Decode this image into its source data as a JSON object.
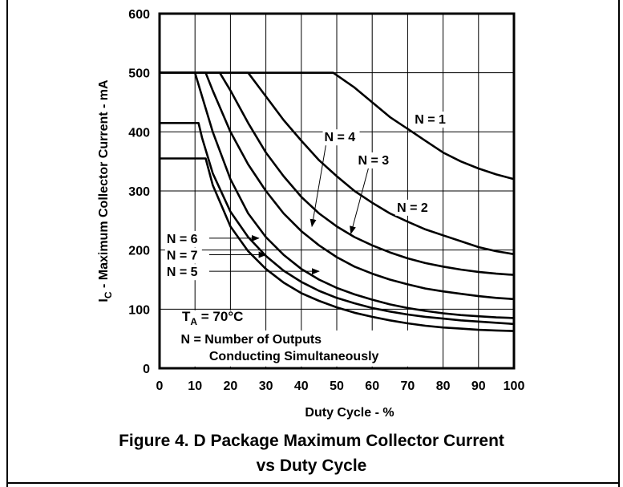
{
  "figure": {
    "caption_line1": "Figure 4. D Package Maximum Collector Current",
    "caption_line2": "vs Duty Cycle"
  },
  "chart_data": {
    "type": "line",
    "xlabel": "Duty Cycle -  %",
    "ylabel_main": "I",
    "ylabel_sub": "C",
    "ylabel_rest": " - Maximum Collector Current - mA",
    "xlim": [
      0,
      100
    ],
    "ylim": [
      0,
      600
    ],
    "x_ticks": [
      0,
      10,
      20,
      30,
      40,
      50,
      60,
      70,
      80,
      90,
      100
    ],
    "y_ticks": [
      0,
      100,
      200,
      300,
      400,
      500,
      600
    ],
    "grid": true,
    "series": [
      {
        "name": "N = 1",
        "x": [
          0,
          49,
          55,
          60,
          65,
          70,
          75,
          80,
          85,
          90,
          95,
          100
        ],
        "y": [
          500,
          500,
          475,
          450,
          425,
          405,
          385,
          365,
          350,
          338,
          328,
          320
        ]
      },
      {
        "name": "N = 2",
        "x": [
          0,
          25,
          30,
          35,
          40,
          45,
          50,
          55,
          60,
          65,
          70,
          75,
          80,
          85,
          90,
          95,
          100
        ],
        "y": [
          500,
          500,
          460,
          420,
          385,
          352,
          325,
          300,
          280,
          262,
          248,
          235,
          225,
          215,
          205,
          198,
          193
        ]
      },
      {
        "name": "N = 3",
        "x": [
          0,
          17,
          20,
          25,
          30,
          35,
          40,
          45,
          50,
          55,
          60,
          65,
          70,
          75,
          80,
          85,
          90,
          95,
          100
        ],
        "y": [
          500,
          500,
          470,
          415,
          365,
          325,
          290,
          262,
          240,
          222,
          208,
          196,
          186,
          178,
          172,
          167,
          163,
          160,
          158
        ]
      },
      {
        "name": "N = 4",
        "x": [
          0,
          13,
          15,
          20,
          25,
          30,
          35,
          40,
          45,
          50,
          55,
          60,
          65,
          70,
          75,
          80,
          85,
          90,
          95,
          100
        ],
        "y": [
          500,
          500,
          470,
          400,
          345,
          300,
          262,
          232,
          208,
          188,
          172,
          160,
          150,
          142,
          135,
          130,
          126,
          122,
          119,
          117
        ]
      },
      {
        "name": "N = 5",
        "x": [
          0,
          10,
          12,
          15,
          20,
          25,
          30,
          35,
          40,
          45,
          50,
          55,
          60,
          65,
          70,
          75,
          80,
          85,
          90,
          95,
          100
        ],
        "y": [
          500,
          500,
          460,
          400,
          320,
          262,
          222,
          192,
          168,
          150,
          136,
          125,
          116,
          108,
          102,
          97,
          93,
          90,
          88,
          86,
          85
        ]
      },
      {
        "name": "N = 6",
        "x": [
          0,
          11,
          12,
          15,
          20,
          25,
          30,
          35,
          40,
          45,
          50,
          55,
          60,
          65,
          70,
          75,
          80,
          85,
          90,
          95,
          100
        ],
        "y": [
          415,
          415,
          390,
          330,
          265,
          222,
          190,
          165,
          146,
          131,
          119,
          110,
          102,
          96,
          91,
          87,
          84,
          81,
          79,
          77,
          75
        ]
      },
      {
        "name": "N = 7",
        "x": [
          0,
          13,
          15,
          20,
          25,
          30,
          35,
          40,
          45,
          50,
          55,
          60,
          65,
          70,
          75,
          80,
          85,
          90,
          95,
          100
        ],
        "y": [
          355,
          355,
          310,
          240,
          198,
          168,
          145,
          127,
          114,
          103,
          94,
          87,
          81,
          76,
          72,
          69,
          67,
          65,
          64,
          63
        ]
      }
    ],
    "annotations": [
      {
        "text": "N = 1",
        "x": 72,
        "y": 422
      },
      {
        "text": "N = 2",
        "x": 67,
        "y": 273
      },
      {
        "text": "N = 3",
        "x": 56,
        "y": 353
      },
      {
        "text": "N = 4",
        "x": 46.5,
        "y": 392
      },
      {
        "text": "N = 6",
        "x": 2,
        "y": 220
      },
      {
        "text": "N = 7",
        "x": 2,
        "y": 192
      },
      {
        "text": "N = 5",
        "x": 2,
        "y": 164
      },
      {
        "text": "T",
        "x": 6,
        "y": 90
      },
      {
        "text": "N = Number of Outputs",
        "x": 6,
        "y": 50
      },
      {
        "text": "Conducting Simultaneously",
        "x": 14,
        "y": 22
      }
    ],
    "temp_note": {
      "main": "T",
      "sub": "A",
      "rest": " = 70°C"
    },
    "arrows": [
      {
        "label": "N = 4",
        "from": [
          47,
          380
        ],
        "to": [
          43,
          240
        ]
      },
      {
        "label": "N = 3",
        "from": [
          59,
          340
        ],
        "to": [
          54,
          228
        ]
      },
      {
        "label": "N = 6",
        "from": [
          14,
          220
        ],
        "to": [
          28,
          220
        ]
      },
      {
        "label": "N = 7",
        "from": [
          14,
          192
        ],
        "to": [
          30,
          192
        ]
      },
      {
        "label": "N = 5",
        "from": [
          14,
          164
        ],
        "to": [
          45,
          164
        ]
      }
    ]
  }
}
